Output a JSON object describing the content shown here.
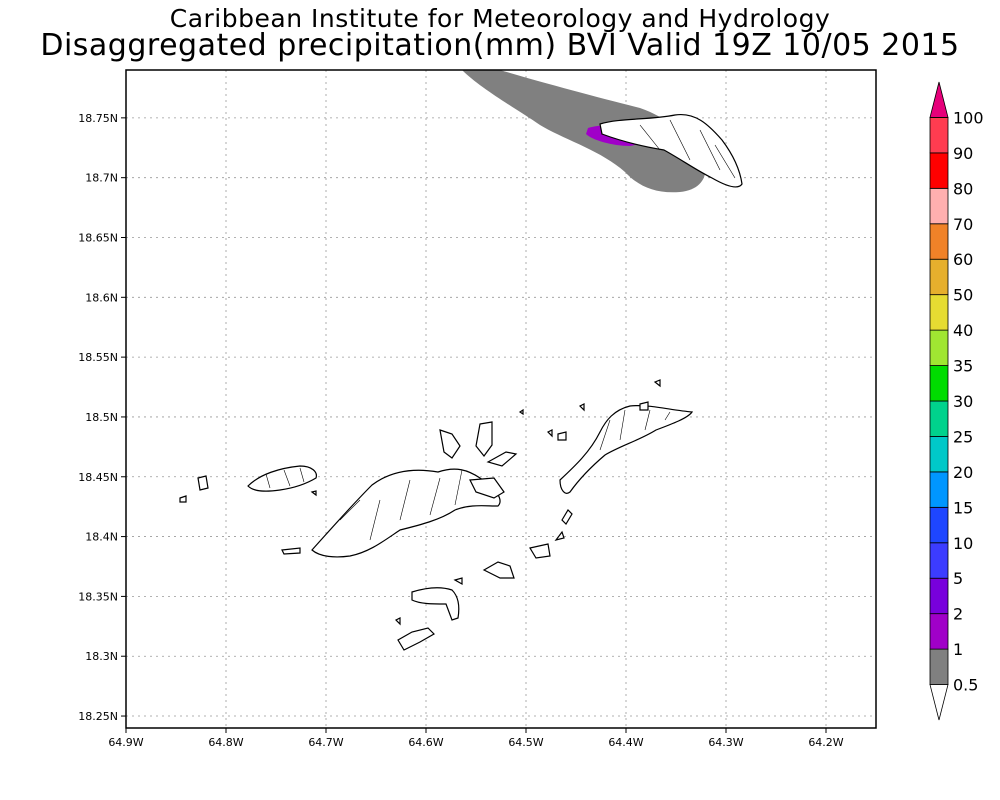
{
  "title": "Caribbean Institute for Meteorology and Hydrology",
  "subtitle": "Disaggregated precipitation(mm) BVI Valid 19Z 10/05 2015",
  "map": {
    "lon_range": [
      -64.9,
      -64.15
    ],
    "lat_range": [
      18.24,
      18.79
    ],
    "grid": true,
    "y_ticks": [
      {
        "value": 18.25,
        "label": "18.25N"
      },
      {
        "value": 18.3,
        "label": "18.3N"
      },
      {
        "value": 18.35,
        "label": "18.35N"
      },
      {
        "value": 18.4,
        "label": "18.4N"
      },
      {
        "value": 18.45,
        "label": "18.45N"
      },
      {
        "value": 18.5,
        "label": "18.5N"
      },
      {
        "value": 18.55,
        "label": "18.55N"
      },
      {
        "value": 18.6,
        "label": "18.6N"
      },
      {
        "value": 18.65,
        "label": "18.65N"
      },
      {
        "value": 18.7,
        "label": "18.7N"
      },
      {
        "value": 18.75,
        "label": "18.75N"
      }
    ],
    "x_ticks": [
      {
        "value": -64.9,
        "label": "64.9W"
      },
      {
        "value": -64.8,
        "label": "64.8W"
      },
      {
        "value": -64.7,
        "label": "64.7W"
      },
      {
        "value": -64.6,
        "label": "64.6W"
      },
      {
        "value": -64.5,
        "label": "64.5W"
      },
      {
        "value": -64.4,
        "label": "64.4W"
      },
      {
        "value": -64.3,
        "label": "64.3W"
      },
      {
        "value": -64.2,
        "label": "64.2W"
      }
    ]
  },
  "colorbar": {
    "levels": [
      {
        "label": "0.5",
        "color": "#ffffff"
      },
      {
        "label": "1",
        "color": "#808080"
      },
      {
        "label": "2",
        "color": "#a000c8"
      },
      {
        "label": "5",
        "color": "#7800dc"
      },
      {
        "label": "10",
        "color": "#3c3cff"
      },
      {
        "label": "15",
        "color": "#1e46ff"
      },
      {
        "label": "20",
        "color": "#0096ff"
      },
      {
        "label": "25",
        "color": "#00c8c8"
      },
      {
        "label": "30",
        "color": "#00d28c"
      },
      {
        "label": "35",
        "color": "#00dc00"
      },
      {
        "label": "40",
        "color": "#a0e632"
      },
      {
        "label": "50",
        "color": "#e6dc32"
      },
      {
        "label": "60",
        "color": "#e6af2d"
      },
      {
        "label": "70",
        "color": "#f08228"
      },
      {
        "label": "80",
        "color": "#ffafaf"
      },
      {
        "label": "90",
        "color": "#ff0000"
      },
      {
        "label": "100",
        "color": "#ff3c50"
      },
      {
        "label": "",
        "color": "#e6007a"
      }
    ]
  }
}
